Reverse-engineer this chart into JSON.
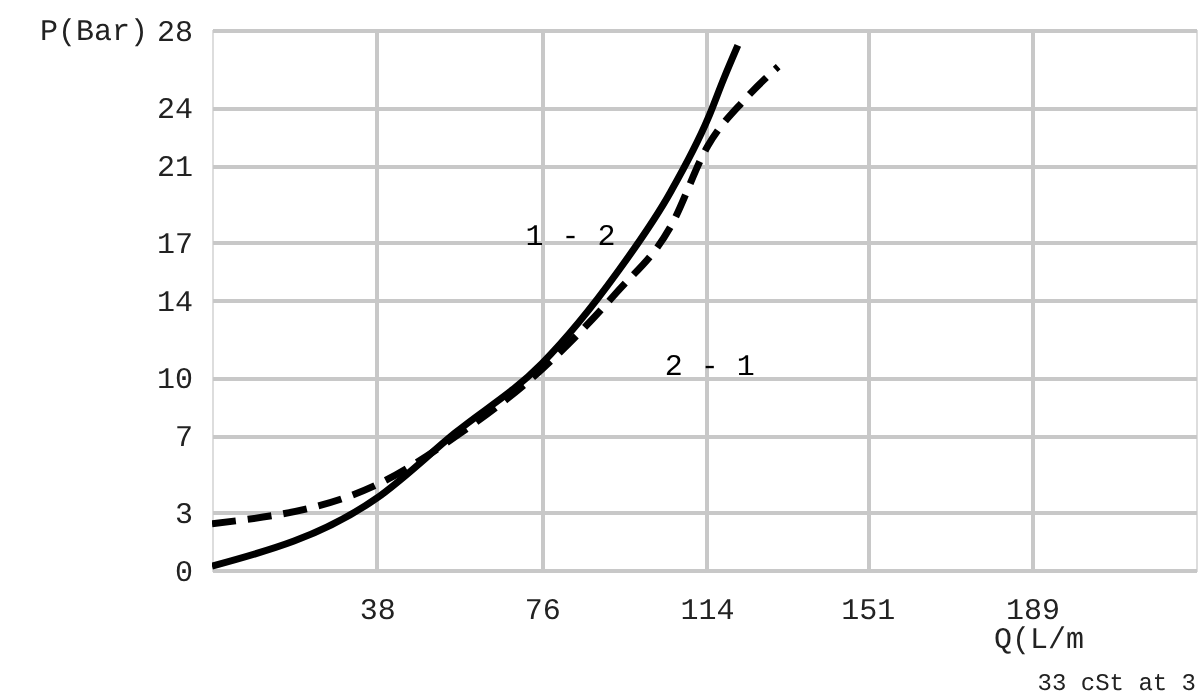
{
  "chart_data": {
    "type": "line",
    "xlabel": "Q(L/m",
    "ylabel": "P(Bar)",
    "x": [
      0,
      37.8,
      56,
      76,
      93.3,
      105.7,
      114.3,
      118,
      121.2
    ],
    "series": [
      {
        "name": "1 - 2",
        "color": "#000000",
        "line_style": "solid",
        "values": [
          0.2,
          3.7,
          7.1,
          10.7,
          15.4,
          19.6,
          23.4,
          25.5,
          27.2
        ]
      },
      {
        "name": "2 - 1",
        "color": "#000000",
        "line_style": "dashed",
        "x": [
          0,
          37.8,
          56,
          76,
          93.3,
          105.7,
          114.3,
          122.8,
          130.5
        ],
        "values": [
          2.4,
          4.4,
          6.9,
          10.4,
          14.4,
          17.8,
          22.0,
          24.4,
          26.1
        ]
      }
    ],
    "xlim": [
      0,
      226.8
    ],
    "ylim": [
      0,
      28
    ],
    "xticks": [
      38,
      76,
      114,
      151,
      189
    ],
    "yticks": [
      0,
      3,
      7,
      10,
      14,
      17,
      21,
      24,
      28
    ],
    "grid": true,
    "annotations": [
      "33 cSt at 3"
    ]
  }
}
